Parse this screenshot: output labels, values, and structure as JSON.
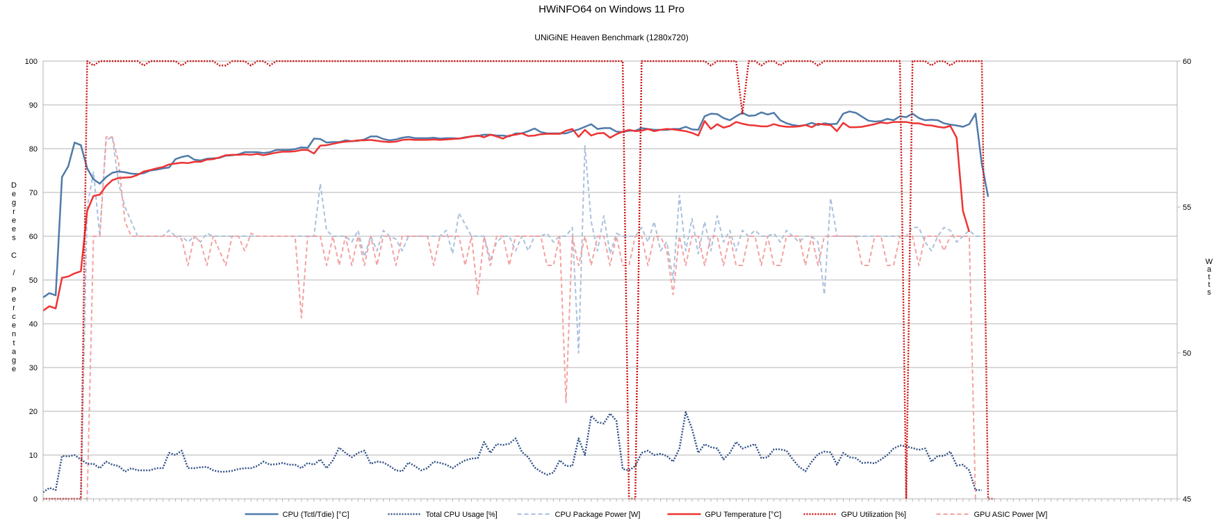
{
  "chart_data": {
    "type": "line",
    "title": "HWiNFO64 on Windows 11 Pro",
    "subtitle": "UNiGiNE Heaven Benchmark (1280x720)",
    "ylabel": "Degrees C / Percentage",
    "y2label": "Watts",
    "ylim": [
      0,
      100
    ],
    "y2lim": [
      45,
      60
    ],
    "yticks": [
      0,
      10,
      20,
      30,
      40,
      50,
      60,
      70,
      80,
      90,
      100
    ],
    "y2ticks": [
      45,
      50,
      55,
      60
    ],
    "grid": true,
    "legend_position": "bottom",
    "n_samples": 181,
    "series": [
      {
        "name": "CPU (Tctl/Tdie) [°C]",
        "axis": "left",
        "color": "#4f7aa8",
        "style": "solid",
        "values": [
          46,
          47,
          46.5,
          73.5,
          76,
          81.4,
          80.8,
          75.5,
          73,
          72,
          73.5,
          74.5,
          74.8,
          74.6,
          74.3,
          74.2,
          74.4,
          75,
          75.2,
          75.5,
          75.7,
          77.6,
          78.1,
          78.4,
          77.5,
          77.3,
          77.7,
          77.8,
          77.9,
          78.4,
          78.5,
          78.7,
          79.2,
          79.2,
          79.2,
          79,
          79.2,
          79.7,
          79.7,
          79.7,
          79.9,
          80.3,
          80.2,
          82.3,
          82.2,
          81.4,
          81.5,
          81.5,
          81.9,
          81.7,
          81.8,
          82.1,
          82.8,
          82.8,
          82.2,
          81.9,
          82.1,
          82.5,
          82.7,
          82.4,
          82.4,
          82.4,
          82.5,
          82.3,
          82.4,
          82.4,
          82.3,
          82.6,
          82.8,
          82.9,
          83.2,
          83.2,
          83,
          83,
          82.8,
          83.5,
          83.5,
          84,
          84.6,
          83.8,
          83.5,
          83.5,
          83.5,
          83.5,
          84,
          84.4,
          85,
          85.6,
          84.5,
          84.7,
          84.7,
          83.9,
          83.8,
          84.1,
          84.1,
          84.7,
          84.5,
          84.3,
          84.3,
          84.3,
          84.5,
          84.5,
          85,
          84.4,
          84.3,
          87.4,
          88,
          87.9,
          87,
          86.5,
          87.4,
          88.2,
          87.5,
          87.6,
          88.3,
          87.8,
          88.2,
          86.5,
          85.8,
          85.4,
          85.2,
          85.4,
          85.9,
          85.4,
          85.8,
          85.6,
          85.7,
          88,
          88.5,
          88.2,
          87.3,
          86.4,
          86.2,
          86.3,
          86.8,
          86.5,
          87.4,
          87.2,
          88,
          87,
          86.5,
          86.6,
          86.5,
          85.8,
          85.5,
          85.3,
          85,
          85.6,
          88,
          76.5,
          69
        ]
      },
      {
        "name": "Total CPU Usage [%]",
        "axis": "left",
        "color": "#2e4f86",
        "style": "dotted",
        "values": [
          1.5,
          2.5,
          2,
          9.8,
          9.7,
          10,
          9,
          8,
          8,
          7,
          8.5,
          7.8,
          7.5,
          6.2,
          7,
          6.5,
          6.5,
          6.5,
          7,
          7,
          10.5,
          10,
          11,
          7,
          7,
          7.2,
          7.3,
          6.5,
          6.2,
          6.2,
          6.4,
          6.8,
          7,
          7,
          7.5,
          8.5,
          7.8,
          7.9,
          8.2,
          7.8,
          7.8,
          7,
          8.2,
          7.8,
          9,
          7,
          8.8,
          11.7,
          10.5,
          9.5,
          10.5,
          11,
          8,
          8.5,
          8.3,
          7.5,
          6.5,
          6.3,
          8.3,
          7.5,
          6.5,
          7,
          8.5,
          8.2,
          7.8,
          7,
          8,
          8.8,
          9.2,
          9.3,
          13,
          10.5,
          12.5,
          12.3,
          12.6,
          13.8,
          10.7,
          9.5,
          7.2,
          6.2,
          5.5,
          6,
          8.8,
          7.5,
          7.5,
          13.8,
          10,
          19,
          17.5,
          17.2,
          19.5,
          17.8,
          6.8,
          6.5,
          7.5,
          10.5,
          11,
          10,
          10.3,
          9.8,
          8.5,
          11.5,
          19.8,
          16,
          10.5,
          12.5,
          11.8,
          11.5,
          9,
          10.5,
          13,
          11.5,
          12,
          12.5,
          9.3,
          9.5,
          11.3,
          11.3,
          11,
          9,
          7.3,
          6.3,
          8.5,
          10.2,
          10.8,
          10.6,
          7.8,
          10.5,
          9.5,
          9.3,
          8.2,
          8.3,
          8.1,
          9,
          10,
          11.5,
          12.2,
          12,
          11.6,
          11.2,
          11.5,
          8.5,
          9.8,
          9.8,
          10.8,
          7.6,
          7.8,
          6.5,
          2,
          2
        ]
      },
      {
        "name": "CPU Package Power [W]",
        "axis": "right",
        "color": "#a9c0db",
        "style": "dashed",
        "values": [
          45,
          45,
          45,
          45,
          45,
          45,
          45,
          55,
          56.2,
          54,
          57.3,
          57.4,
          55.8,
          55,
          54.5,
          54,
          54,
          54,
          54,
          54,
          54.2,
          54,
          54,
          53.8,
          54,
          53.8,
          54.1,
          54,
          54,
          54,
          54,
          54,
          54,
          54,
          54,
          54,
          54,
          54,
          54,
          54,
          54,
          54,
          54,
          54,
          55.8,
          54.2,
          54,
          54,
          54,
          53.8,
          54.2,
          53.3,
          54,
          53.5,
          54.2,
          54,
          53.9,
          53.5,
          54,
          54,
          54,
          54,
          54,
          54,
          54.2,
          53.4,
          54.8,
          54.4,
          54,
          54,
          54,
          53.2,
          53.8,
          54,
          54,
          53.5,
          54,
          53.5,
          54,
          54,
          54.1,
          53.8,
          54,
          54,
          54.3,
          50,
          57.1,
          54.5,
          53.5,
          54.7,
          53.4,
          54.1,
          54,
          54,
          54,
          54.3,
          53.8,
          54.5,
          53.5,
          53.8,
          52.5,
          55.4,
          53.5,
          54.6,
          53.4,
          54.5,
          53.5,
          54.7,
          53.8,
          54.2,
          53.5,
          54.2,
          54,
          54.2,
          54,
          54,
          54.1,
          53.8,
          54.2,
          54,
          53.8,
          54,
          54,
          53.8,
          52,
          55.3,
          54,
          54,
          54,
          54,
          54,
          54,
          54,
          54,
          54,
          54,
          54,
          54,
          54.3,
          54.3,
          53.8,
          53.5,
          54,
          54.3,
          54.2,
          53.8,
          54,
          54.2,
          54,
          54
        ]
      },
      {
        "name": "GPU Temperature [°C]",
        "axis": "left",
        "color": "#ee3333",
        "style": "solid",
        "values": [
          43,
          44,
          43.5,
          50.5,
          50.8,
          51.5,
          52,
          65.8,
          69.2,
          69.5,
          71.5,
          72.8,
          73.3,
          73.4,
          73.5,
          74,
          74.8,
          75.1,
          75.5,
          75.8,
          76.4,
          76.6,
          76.8,
          76.7,
          77,
          77,
          77.5,
          77.6,
          78,
          78.5,
          78.6,
          78.6,
          78.7,
          78.6,
          78.8,
          78.5,
          78.8,
          79.1,
          79.3,
          79.3,
          79.4,
          79.7,
          79.7,
          78.9,
          80.7,
          80.8,
          81.1,
          81.4,
          81.6,
          81.7,
          81.9,
          81.9,
          82,
          81.8,
          81.6,
          81.5,
          81.6,
          82,
          82.1,
          82,
          82,
          82,
          82.1,
          82,
          82.1,
          82.2,
          82.3,
          82.5,
          82.8,
          83,
          82.6,
          83.2,
          82.8,
          82.3,
          83,
          83.2,
          83.5,
          82.9,
          83,
          83.3,
          83.4,
          83.4,
          83.4,
          84.1,
          84.5,
          82.7,
          84.3,
          83,
          83.5,
          83.6,
          82.5,
          83.3,
          83.9,
          84.3,
          84,
          84.1,
          84.5,
          84,
          84.3,
          84.5,
          84.4,
          84.2,
          84,
          83.6,
          83,
          86.3,
          84.5,
          85.6,
          84.8,
          85.2,
          86.1,
          85.7,
          85.4,
          85.3,
          85.1,
          85.1,
          85.6,
          85.2,
          85,
          85,
          85.1,
          85.4,
          84.9,
          85.7,
          85.5,
          85.4,
          84,
          85.9,
          84.9,
          84.9,
          85,
          85.3,
          85.6,
          86,
          85.8,
          86.1,
          86.1,
          86.1,
          85.8,
          85.8,
          85.4,
          85.3,
          85,
          84.8,
          85.2,
          82.5,
          65.8,
          61
        ]
      },
      {
        "name": "GPU Utilization [%]",
        "axis": "left",
        "color": "#cc1111",
        "style": "dotted",
        "values": [
          0,
          0,
          0,
          0,
          0,
          0,
          0,
          100,
          99,
          100,
          100,
          100,
          100,
          100,
          100,
          100,
          99,
          100,
          100,
          100,
          100,
          100,
          99,
          100,
          100,
          100,
          100,
          100,
          99,
          99,
          100,
          100,
          100,
          99,
          100,
          100,
          99,
          100,
          100,
          100,
          100,
          100,
          100,
          100,
          100,
          100,
          100,
          100,
          100,
          100,
          100,
          100,
          100,
          100,
          100,
          100,
          100,
          100,
          100,
          100,
          100,
          100,
          100,
          100,
          100,
          100,
          100,
          100,
          100,
          100,
          100,
          100,
          100,
          100,
          100,
          100,
          100,
          100,
          100,
          100,
          100,
          100,
          100,
          100,
          100,
          100,
          100,
          100,
          100,
          100,
          100,
          100,
          100,
          0,
          0,
          100,
          100,
          100,
          100,
          100,
          100,
          100,
          100,
          100,
          100,
          100,
          99,
          100,
          100,
          100,
          100,
          88,
          100,
          100,
          99,
          100,
          100,
          99,
          100,
          100,
          100,
          100,
          100,
          99,
          100,
          100,
          100,
          100,
          100,
          100,
          100,
          100,
          100,
          100,
          100,
          100,
          100,
          0,
          100,
          100,
          100,
          99,
          100,
          100,
          99,
          100,
          100,
          100,
          100,
          100,
          0,
          0
        ]
      },
      {
        "name": "GPU ASIC Power [W]",
        "axis": "right",
        "color": "#f4a0a0",
        "style": "dashed",
        "values": [
          45,
          45,
          45,
          45,
          45,
          45,
          45,
          45,
          54,
          54,
          57.4,
          57.4,
          56.5,
          54.5,
          54,
          54,
          54,
          54,
          54,
          54,
          54,
          54,
          53.9,
          53,
          54,
          53.8,
          53,
          54,
          53.5,
          53,
          54,
          54,
          53.5,
          54.1,
          54,
          54,
          54,
          54,
          54,
          54,
          54,
          51.2,
          54,
          54,
          54,
          53,
          54,
          53,
          54,
          53,
          54,
          53,
          54,
          53,
          54,
          54,
          53,
          54,
          54,
          54,
          54,
          54,
          53,
          54,
          54,
          54,
          54,
          53,
          54,
          52,
          54,
          53,
          54,
          54,
          53,
          54,
          54,
          54,
          54,
          54,
          53,
          53,
          54,
          48.3,
          54,
          53,
          54,
          53,
          54,
          54,
          53,
          54,
          53,
          53,
          54,
          54,
          53,
          54,
          54,
          53.5,
          52,
          54,
          53,
          54,
          54,
          53,
          54,
          54,
          53,
          54,
          53,
          53,
          54,
          54,
          53,
          54,
          53,
          53,
          54,
          54,
          54,
          53,
          54,
          53,
          54,
          54,
          54,
          54,
          54,
          54,
          53,
          53,
          54,
          54,
          53,
          53,
          54,
          54,
          54,
          53,
          54,
          54,
          54,
          53.5,
          54,
          54,
          54,
          54,
          45
        ]
      }
    ]
  }
}
